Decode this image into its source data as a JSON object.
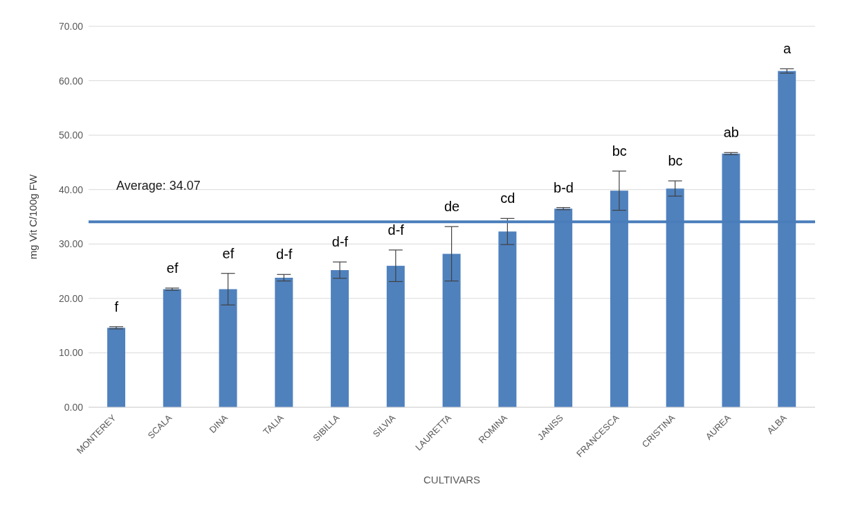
{
  "chart_data": {
    "type": "bar",
    "xlabel": "CULTIVARS",
    "ylabel": "mg Vit C/100g FW",
    "categories": [
      "MONTEREY",
      "SCALA",
      "DINA",
      "TALIA",
      "SIBILLA",
      "SILVIA",
      "LAURETTA",
      "ROMINA",
      "JANISS",
      "FRANCESCA",
      "CRISTINA",
      "AUREA",
      "ALBA"
    ],
    "values": [
      14.6,
      21.7,
      21.7,
      23.8,
      25.2,
      26.0,
      28.2,
      32.3,
      36.5,
      39.8,
      40.2,
      46.6,
      61.8
    ],
    "errors": [
      0.2,
      0.2,
      2.9,
      0.6,
      1.5,
      2.9,
      5.0,
      2.4,
      0.2,
      3.6,
      1.4,
      0.2,
      0.4
    ],
    "color": "#4f81bd",
    "ylim": [
      0,
      70
    ],
    "yticks": [
      {
        "value": 0,
        "label": "0.00"
      },
      {
        "value": 10,
        "label": "10.00"
      },
      {
        "value": 20,
        "label": "20.00"
      },
      {
        "value": 30,
        "label": "30.00"
      },
      {
        "value": 40,
        "label": "40.00"
      },
      {
        "value": 50,
        "label": "50.00"
      },
      {
        "value": 60,
        "label": "60.00"
      },
      {
        "value": 70,
        "label": "70.00"
      }
    ],
    "grid": "y",
    "ref_lines": [
      {
        "axis": "y",
        "value": 34.07,
        "label": "Average: 34.07",
        "color": "#4a7ebb"
      }
    ],
    "annotations": [
      {
        "text": "f",
        "x": "MONTEREY",
        "y": 14.8
      },
      {
        "text": "ef",
        "x": "SCALA",
        "y": 21.9
      },
      {
        "text": "ef",
        "x": "DINA",
        "y": 24.6
      },
      {
        "text": "d-f",
        "x": "TALIA",
        "y": 24.4
      },
      {
        "text": "d-f",
        "x": "SIBILLA",
        "y": 26.7
      },
      {
        "text": "d-f",
        "x": "SILVIA",
        "y": 28.9
      },
      {
        "text": "de",
        "x": "LAURETTA",
        "y": 33.2
      },
      {
        "text": "cd",
        "x": "ROMINA",
        "y": 34.7
      },
      {
        "text": "b-d",
        "x": "JANISS",
        "y": 36.7
      },
      {
        "text": "bc",
        "x": "FRANCESCA",
        "y": 43.4
      },
      {
        "text": "bc",
        "x": "CRISTINA",
        "y": 41.6
      },
      {
        "text": "ab",
        "x": "AUREA",
        "y": 46.8
      },
      {
        "text": "a",
        "x": "ALBA",
        "y": 62.2
      }
    ]
  }
}
